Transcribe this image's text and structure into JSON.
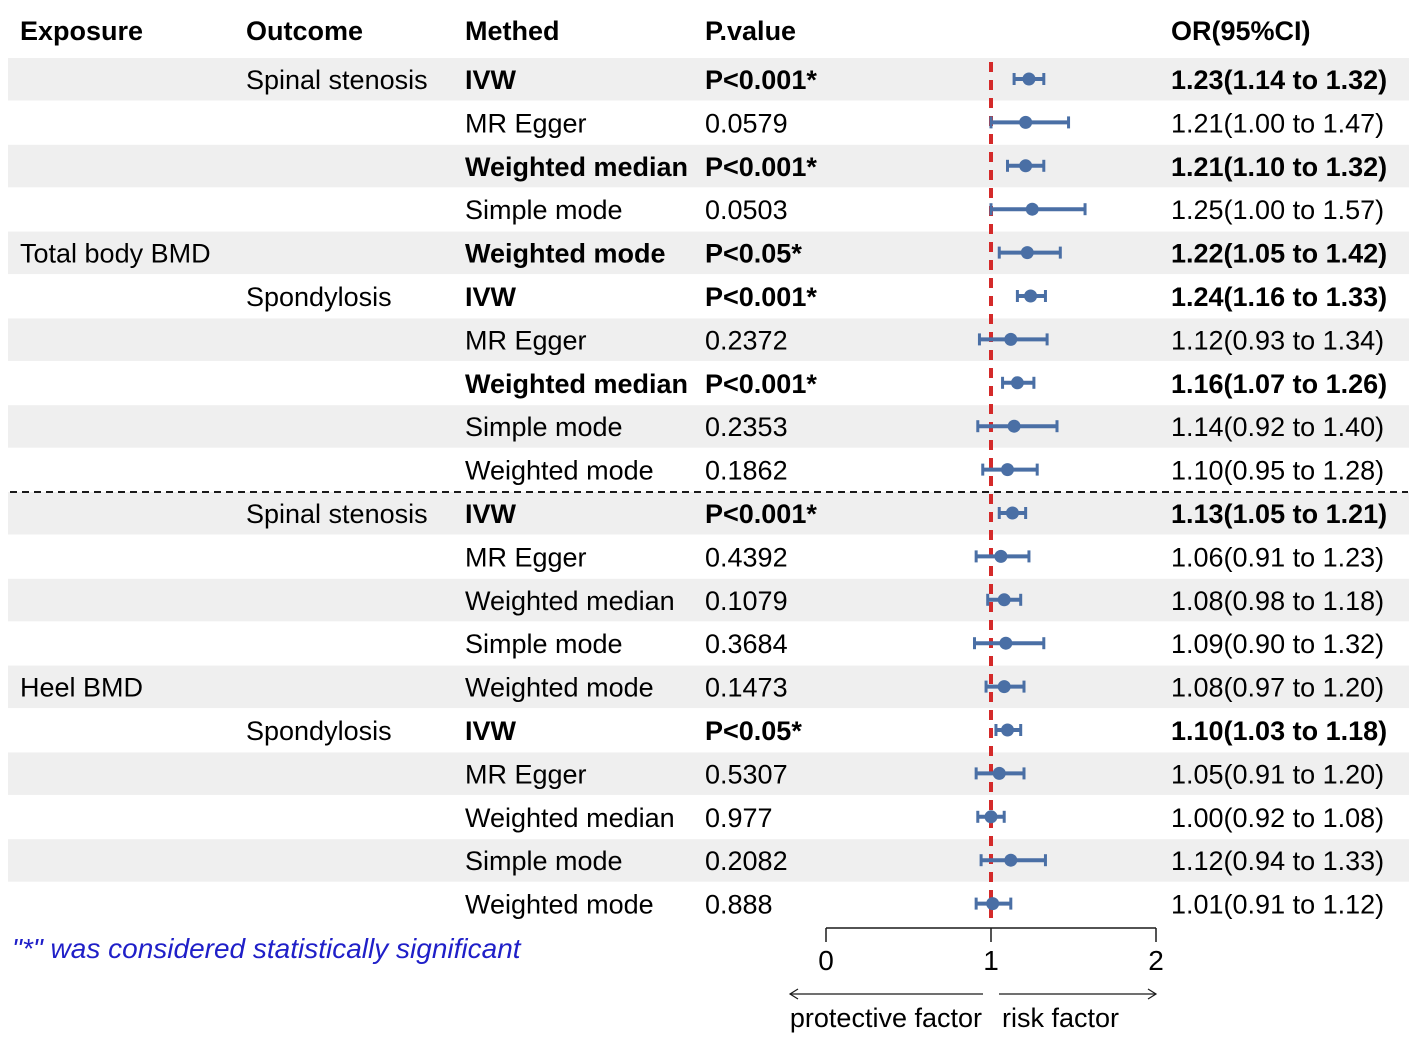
{
  "headers": {
    "exposure": "Exposure",
    "outcome": "Outcome",
    "method": "Methed",
    "pvalue": "P.value",
    "or": "OR(95%CI)"
  },
  "chart_data": {
    "type": "forest",
    "reference_line": 1,
    "xlim": [
      0,
      2
    ],
    "x_ticks": [
      "0",
      "1",
      "2"
    ],
    "direction_labels": {
      "left": "protective factor",
      "right": "risk factor"
    },
    "note": "\"*\" was considered statistically significant",
    "colors": {
      "point": "#4a6fa5",
      "reference": "#d42a2a",
      "band": "#efefef",
      "note": "#1f1fc8"
    },
    "rows": [
      {
        "exposure": "",
        "outcome": "Spinal stenosis",
        "method": "IVW",
        "p": "P<0.001*",
        "or": 1.23,
        "lo": 1.14,
        "hi": 1.32,
        "label": "1.23(1.14 to 1.32)",
        "sig": true
      },
      {
        "exposure": "",
        "outcome": "",
        "method": "MR Egger",
        "p": "0.0579",
        "or": 1.21,
        "lo": 1.0,
        "hi": 1.47,
        "label": "1.21(1.00 to 1.47)",
        "sig": false
      },
      {
        "exposure": "",
        "outcome": "",
        "method": "Weighted median",
        "p": "P<0.001*",
        "or": 1.21,
        "lo": 1.1,
        "hi": 1.32,
        "label": "1.21(1.10 to 1.32)",
        "sig": true
      },
      {
        "exposure": "",
        "outcome": "",
        "method": "Simple mode",
        "p": "0.0503",
        "or": 1.25,
        "lo": 1.0,
        "hi": 1.57,
        "label": "1.25(1.00 to 1.57)",
        "sig": false
      },
      {
        "exposure": "Total body BMD",
        "outcome": "",
        "method": "Weighted mode",
        "p": "P<0.05*",
        "or": 1.22,
        "lo": 1.05,
        "hi": 1.42,
        "label": "1.22(1.05 to 1.42)",
        "sig": true
      },
      {
        "exposure": "",
        "outcome": "Spondylosis",
        "method": "IVW",
        "p": "P<0.001*",
        "or": 1.24,
        "lo": 1.16,
        "hi": 1.33,
        "label": "1.24(1.16 to 1.33)",
        "sig": true
      },
      {
        "exposure": "",
        "outcome": "",
        "method": "MR Egger",
        "p": "0.2372",
        "or": 1.12,
        "lo": 0.93,
        "hi": 1.34,
        "label": "1.12(0.93 to 1.34)",
        "sig": false
      },
      {
        "exposure": "",
        "outcome": "",
        "method": "Weighted median",
        "p": "P<0.001*",
        "or": 1.16,
        "lo": 1.07,
        "hi": 1.26,
        "label": "1.16(1.07 to 1.26)",
        "sig": true
      },
      {
        "exposure": "",
        "outcome": "",
        "method": "Simple mode",
        "p": "0.2353",
        "or": 1.14,
        "lo": 0.92,
        "hi": 1.4,
        "label": "1.14(0.92 to 1.40)",
        "sig": false
      },
      {
        "exposure": "",
        "outcome": "",
        "method": "Weighted mode",
        "p": "0.1862",
        "or": 1.1,
        "lo": 0.95,
        "hi": 1.28,
        "label": "1.10(0.95 to 1.28)",
        "sig": false
      },
      {
        "exposure": "",
        "outcome": "Spinal stenosis",
        "method": "IVW",
        "p": "P<0.001*",
        "or": 1.13,
        "lo": 1.05,
        "hi": 1.21,
        "label": "1.13(1.05 to 1.21)",
        "sig": true
      },
      {
        "exposure": "",
        "outcome": "",
        "method": "MR Egger",
        "p": "0.4392",
        "or": 1.06,
        "lo": 0.91,
        "hi": 1.23,
        "label": "1.06(0.91 to 1.23)",
        "sig": false
      },
      {
        "exposure": "",
        "outcome": "",
        "method": "Weighted median",
        "p": "0.1079",
        "or": 1.08,
        "lo": 0.98,
        "hi": 1.18,
        "label": "1.08(0.98 to 1.18)",
        "sig": false
      },
      {
        "exposure": "",
        "outcome": "",
        "method": "Simple mode",
        "p": "0.3684",
        "or": 1.09,
        "lo": 0.9,
        "hi": 1.32,
        "label": "1.09(0.90 to 1.32)",
        "sig": false
      },
      {
        "exposure": "Heel BMD",
        "outcome": "",
        "method": "Weighted mode",
        "p": "0.1473",
        "or": 1.08,
        "lo": 0.97,
        "hi": 1.2,
        "label": "1.08(0.97 to 1.20)",
        "sig": false
      },
      {
        "exposure": "",
        "outcome": "Spondylosis",
        "method": "IVW",
        "p": "P<0.05*",
        "or": 1.1,
        "lo": 1.03,
        "hi": 1.18,
        "label": "1.10(1.03 to 1.18)",
        "sig": true
      },
      {
        "exposure": "",
        "outcome": "",
        "method": "MR Egger",
        "p": "0.5307",
        "or": 1.05,
        "lo": 0.91,
        "hi": 1.2,
        "label": "1.05(0.91 to 1.20)",
        "sig": false
      },
      {
        "exposure": "",
        "outcome": "",
        "method": "Weighted median",
        "p": "0.977",
        "or": 1.0,
        "lo": 0.92,
        "hi": 1.08,
        "label": "1.00(0.92 to 1.08)",
        "sig": false
      },
      {
        "exposure": "",
        "outcome": "",
        "method": "Simple mode",
        "p": "0.2082",
        "or": 1.12,
        "lo": 0.94,
        "hi": 1.33,
        "label": "1.12(0.94 to 1.33)",
        "sig": false
      },
      {
        "exposure": "",
        "outcome": "",
        "method": "Weighted mode",
        "p": "0.888",
        "or": 1.01,
        "lo": 0.91,
        "hi": 1.12,
        "label": "1.01(0.91 to 1.12)",
        "sig": false
      }
    ]
  }
}
